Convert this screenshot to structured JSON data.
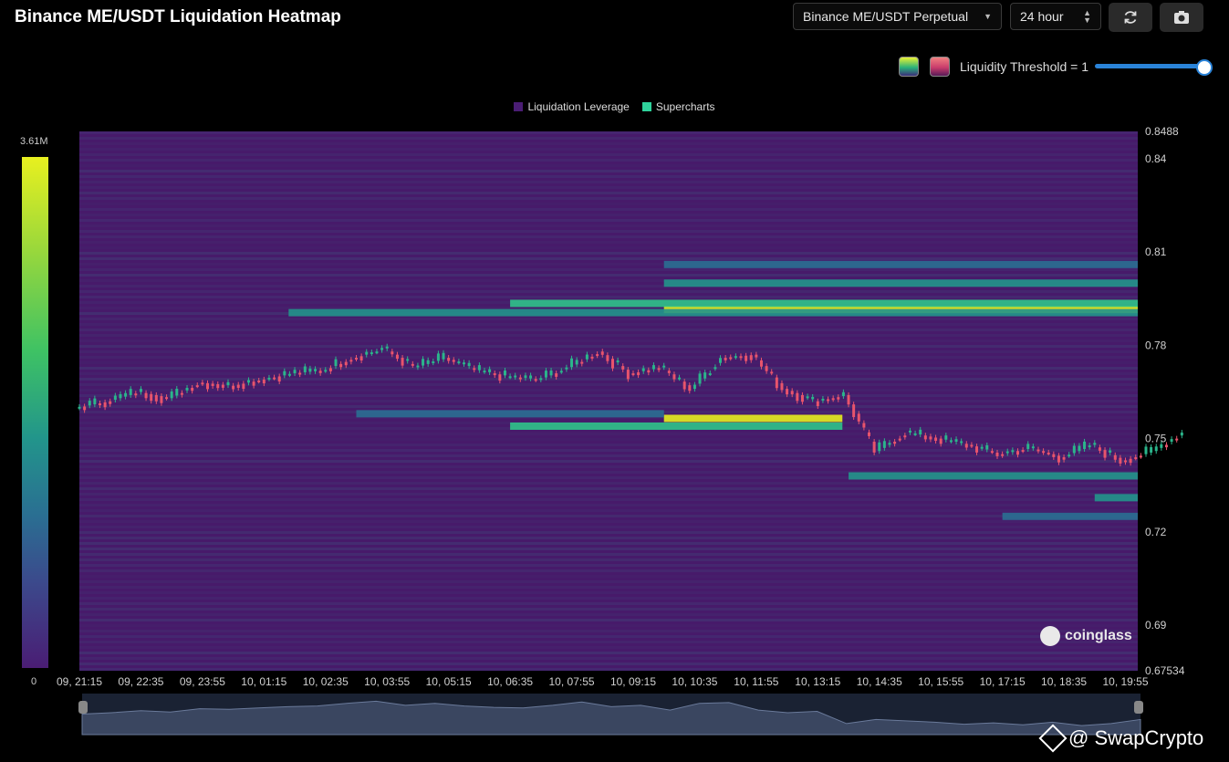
{
  "header": {
    "title": "Binance ME/USDT Liquidation Heatmap",
    "pair_select": "Binance ME/USDT Perpetual",
    "range_select": "24 hour"
  },
  "threshold": {
    "label": "Liquidity Threshold = 1",
    "value": 1
  },
  "legend": {
    "item1": "Liquidation Leverage",
    "item2": "Supercharts"
  },
  "colorbar": {
    "max_label": "3.61M",
    "min_label": "0"
  },
  "watermark": {
    "text": "coinglass"
  },
  "footer": {
    "handle": "@ SwapCrypto"
  },
  "colors": {
    "accent": "#2a83d8",
    "up": "#2bb58b",
    "down": "#e8546c",
    "background_cell": "#471a6a",
    "hot": "#e8f01f"
  },
  "chart_data": {
    "type": "heatmap",
    "title": "Binance ME/USDT Liquidation Heatmap",
    "y_ticks": [
      "0.8488",
      "0.84",
      "0.81",
      "0.78",
      "0.75",
      "0.72",
      "0.69",
      "0.67534"
    ],
    "y_tick_values": [
      0.8488,
      0.84,
      0.81,
      0.78,
      0.75,
      0.72,
      0.69,
      0.67534
    ],
    "ylim": [
      0.67534,
      0.8488
    ],
    "x_ticks": [
      "09, 21:15",
      "09, 22:35",
      "09, 23:55",
      "10, 01:15",
      "10, 02:35",
      "10, 03:55",
      "10, 05:15",
      "10, 06:35",
      "10, 07:55",
      "10, 09:15",
      "10, 10:35",
      "10, 11:55",
      "10, 13:15",
      "10, 14:35",
      "10, 15:55",
      "10, 17:15",
      "10, 18:35",
      "10, 19:55"
    ],
    "colorbar_range": [
      0,
      3610000
    ],
    "price_series_x": [
      0,
      0.5,
      1,
      1.5,
      2,
      2.5,
      3,
      3.5,
      4,
      4.5,
      5,
      5.5,
      6,
      6.5,
      7,
      7.5,
      8,
      8.5,
      9,
      9.5,
      10,
      10.5,
      11,
      11.5,
      12,
      12.5,
      13,
      13.5,
      14,
      14.5,
      15,
      15.5,
      16,
      16.5,
      17,
      17.5,
      18
    ],
    "price_series_close": [
      0.76,
      0.762,
      0.765,
      0.763,
      0.768,
      0.767,
      0.769,
      0.771,
      0.772,
      0.776,
      0.779,
      0.773,
      0.776,
      0.772,
      0.77,
      0.769,
      0.773,
      0.778,
      0.771,
      0.773,
      0.766,
      0.776,
      0.777,
      0.766,
      0.762,
      0.764,
      0.746,
      0.752,
      0.75,
      0.748,
      0.745,
      0.747,
      0.744,
      0.748,
      0.743,
      0.746,
      0.752
    ],
    "liquidation_bands": [
      {
        "price": 0.7915,
        "start": 9.5,
        "intensity": 1.0
      },
      {
        "price": 0.7935,
        "start": 7.0,
        "intensity": 0.55
      },
      {
        "price": 0.7905,
        "start": 3.4,
        "intensity": 0.45
      },
      {
        "price": 0.8,
        "start": 9.5,
        "intensity": 0.5
      },
      {
        "price": 0.806,
        "start": 9.5,
        "intensity": 0.35
      },
      {
        "price": 0.7565,
        "start": 9.5,
        "end": 12.4,
        "intensity": 0.95
      },
      {
        "price": 0.754,
        "start": 7.0,
        "end": 12.4,
        "intensity": 0.55
      },
      {
        "price": 0.758,
        "start": 4.5,
        "end": 9.5,
        "intensity": 0.3
      },
      {
        "price": 0.738,
        "start": 12.5,
        "intensity": 0.45
      },
      {
        "price": 0.731,
        "start": 16.5,
        "intensity": 0.4
      },
      {
        "price": 0.725,
        "start": 15.0,
        "intensity": 0.3
      }
    ]
  }
}
